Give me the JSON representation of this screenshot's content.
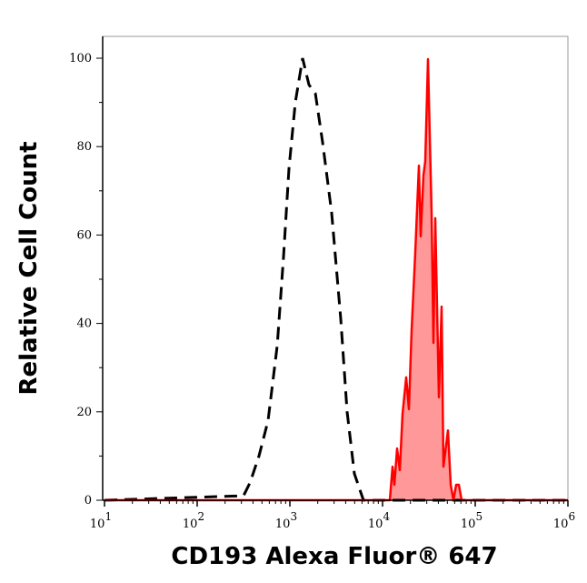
{
  "chart_data": {
    "type": "area",
    "title": "",
    "xlabel": "CD193 Alexa Fluor® 647",
    "ylabel": "Relative Cell Count",
    "xscale": "log",
    "xlim": [
      10,
      1000000
    ],
    "ylim": [
      0,
      100
    ],
    "x_ticks": [
      {
        "base": "10",
        "exp": "1",
        "value": 10
      },
      {
        "base": "10",
        "exp": "2",
        "value": 100
      },
      {
        "base": "10",
        "exp": "3",
        "value": 1000
      },
      {
        "base": "10",
        "exp": "4",
        "value": 10000
      },
      {
        "base": "10",
        "exp": "5",
        "value": 100000
      },
      {
        "base": "10",
        "exp": "6",
        "value": 1000000
      }
    ],
    "y_ticks": [
      "0",
      "20",
      "40",
      "60",
      "80",
      "100"
    ],
    "grid": false,
    "series": [
      {
        "style": "dashed-line",
        "color": "#000000",
        "fill": "none",
        "x": [
          10,
          316,
          372,
          464,
          582,
          730,
          854,
          977,
          1145,
          1371,
          1607,
          1884,
          2254,
          2825,
          3540,
          4150,
          4966,
          6220,
          1000000
        ],
        "y": [
          0,
          1,
          4,
          10,
          18,
          35,
          55,
          75,
          90,
          100,
          94,
          92,
          81,
          65,
          41,
          20,
          6,
          0,
          0
        ]
      },
      {
        "style": "solid-filled",
        "color": "#ff0000",
        "fill": "#ff9999",
        "x": [
          10,
          11980,
          12820,
          13410,
          14360,
          15350,
          16440,
          17990,
          19240,
          20600,
          22540,
          24670,
          25820,
          27610,
          28900,
          30920,
          33820,
          35400,
          37070,
          40550,
          43370,
          45410,
          50820,
          54330,
          58210,
          62230,
          66680,
          71290,
          1000000
        ],
        "y": [
          0,
          0,
          7.6,
          3.5,
          11.7,
          6.8,
          19.5,
          27.8,
          20.6,
          38.5,
          56,
          75.7,
          59.7,
          73.5,
          76.7,
          99.8,
          64.8,
          35.6,
          63.8,
          23.3,
          43.8,
          7.6,
          15.8,
          3.5,
          0,
          3.5,
          3.5,
          0,
          0
        ]
      }
    ]
  }
}
